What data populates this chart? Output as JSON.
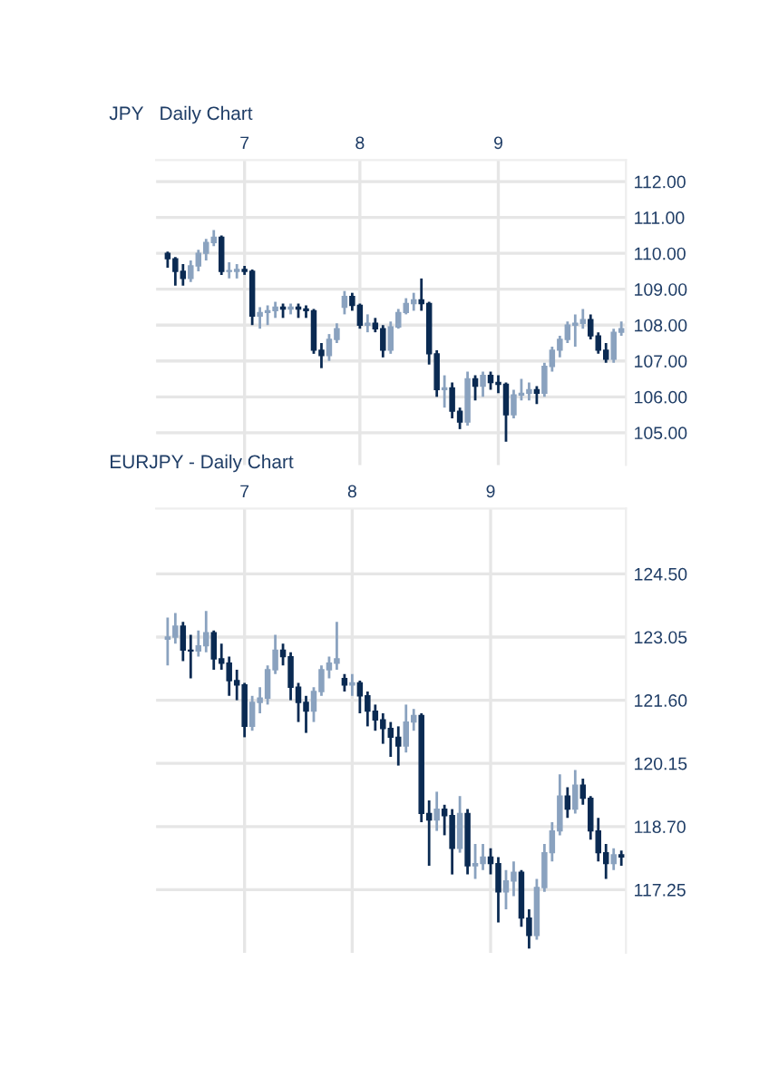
{
  "chart_data": [
    {
      "type": "candlestick",
      "title": "JPY   Daily Chart",
      "categories": [
        null,
        null,
        null,
        null,
        null,
        null,
        null,
        null,
        null,
        null,
        "7",
        null,
        null,
        null,
        null,
        null,
        null,
        null,
        null,
        null,
        null,
        null,
        null,
        null,
        null,
        "8",
        null,
        null,
        null,
        null,
        null,
        null,
        null,
        null,
        null,
        null,
        null,
        null,
        null,
        null,
        null,
        null,
        null,
        "9",
        null,
        null,
        null,
        null,
        null,
        null,
        null,
        null,
        null,
        null,
        null,
        null,
        null,
        null,
        null,
        null
      ],
      "ohlc": [
        [
          110.0,
          110.05,
          109.6,
          109.85
        ],
        [
          109.85,
          109.9,
          109.1,
          109.5
        ],
        [
          109.5,
          109.7,
          109.1,
          109.3
        ],
        [
          109.3,
          109.8,
          109.2,
          109.65
        ],
        [
          109.65,
          110.1,
          109.5,
          110.0
        ],
        [
          110.0,
          110.4,
          109.8,
          110.3
        ],
        [
          110.3,
          110.65,
          110.2,
          110.45
        ],
        [
          110.45,
          110.5,
          109.4,
          109.5
        ],
        [
          109.5,
          109.75,
          109.3,
          109.5
        ],
        [
          109.5,
          109.7,
          109.3,
          109.55
        ],
        [
          109.55,
          109.65,
          109.4,
          109.5
        ],
        [
          109.5,
          109.55,
          108.0,
          108.25
        ],
        [
          108.25,
          108.5,
          107.9,
          108.35
        ],
        [
          108.35,
          108.55,
          108.0,
          108.4
        ],
        [
          108.4,
          108.65,
          108.2,
          108.5
        ],
        [
          108.5,
          108.6,
          108.2,
          108.45
        ],
        [
          108.45,
          108.6,
          108.3,
          108.5
        ],
        [
          108.5,
          108.6,
          108.2,
          108.45
        ],
        [
          108.45,
          108.55,
          108.2,
          108.4
        ],
        [
          108.4,
          108.45,
          107.2,
          107.3
        ],
        [
          107.3,
          107.5,
          106.8,
          107.15
        ],
        [
          107.15,
          107.75,
          107.0,
          107.6
        ],
        [
          107.6,
          108.05,
          107.5,
          107.9
        ],
        [
          108.5,
          108.95,
          108.3,
          108.8
        ],
        [
          108.8,
          108.9,
          108.4,
          108.55
        ],
        [
          108.55,
          108.6,
          107.9,
          108.0
        ],
        [
          108.0,
          108.3,
          107.8,
          108.05
        ],
        [
          108.05,
          108.2,
          107.8,
          107.9
        ],
        [
          107.9,
          108.0,
          107.1,
          107.3
        ],
        [
          107.3,
          108.1,
          107.2,
          107.95
        ],
        [
          107.95,
          108.45,
          107.9,
          108.35
        ],
        [
          108.35,
          108.75,
          108.3,
          108.6
        ],
        [
          108.6,
          108.9,
          108.4,
          108.7
        ],
        [
          108.7,
          109.3,
          108.4,
          108.6
        ],
        [
          108.6,
          108.65,
          106.9,
          107.2
        ],
        [
          107.2,
          107.3,
          106.0,
          106.2
        ],
        [
          106.2,
          106.6,
          105.7,
          106.25
        ],
        [
          106.25,
          106.4,
          105.4,
          105.6
        ],
        [
          105.6,
          105.7,
          105.1,
          105.3
        ],
        [
          105.3,
          106.7,
          105.2,
          106.5
        ],
        [
          106.5,
          106.6,
          105.9,
          106.3
        ],
        [
          106.3,
          106.7,
          106.0,
          106.6
        ],
        [
          106.6,
          106.7,
          106.2,
          106.4
        ],
        [
          106.4,
          106.6,
          106.1,
          106.35
        ],
        [
          106.35,
          106.4,
          104.75,
          105.5
        ],
        [
          105.5,
          106.2,
          105.4,
          106.05
        ],
        [
          106.05,
          106.5,
          105.9,
          106.1
        ],
        [
          106.1,
          106.4,
          105.9,
          106.2
        ],
        [
          106.2,
          106.3,
          105.8,
          106.1
        ],
        [
          106.1,
          106.95,
          106.0,
          106.85
        ],
        [
          106.85,
          107.4,
          106.7,
          107.3
        ],
        [
          107.3,
          107.7,
          107.1,
          107.6
        ],
        [
          107.6,
          108.1,
          107.5,
          108.0
        ],
        [
          108.0,
          108.3,
          107.4,
          108.05
        ],
        [
          108.05,
          108.45,
          107.9,
          108.15
        ],
        [
          108.15,
          108.3,
          107.6,
          107.7
        ],
        [
          107.7,
          107.8,
          107.2,
          107.3
        ],
        [
          107.3,
          107.5,
          106.95,
          107.05
        ],
        [
          107.05,
          107.9,
          106.95,
          107.8
        ],
        [
          107.8,
          108.1,
          107.7,
          107.9
        ]
      ],
      "colors": [
        "#0a2a52",
        "#0a2a52",
        "#0a2a52",
        "#8aa2bf",
        "#8aa2bf",
        "#8aa2bf",
        "#8aa2bf",
        "#0a2a52",
        "#8aa2bf",
        "#8aa2bf",
        "#0a2a52",
        "#0a2a52",
        "#8aa2bf",
        "#8aa2bf",
        "#8aa2bf",
        "#0a2a52",
        "#8aa2bf",
        "#0a2a52",
        "#0a2a52",
        "#0a2a52",
        "#0a2a52",
        "#8aa2bf",
        "#8aa2bf",
        "#8aa2bf",
        "#0a2a52",
        "#0a2a52",
        "#8aa2bf",
        "#0a2a52",
        "#0a2a52",
        "#8aa2bf",
        "#8aa2bf",
        "#8aa2bf",
        "#8aa2bf",
        "#0a2a52",
        "#0a2a52",
        "#0a2a52",
        "#8aa2bf",
        "#0a2a52",
        "#0a2a52",
        "#8aa2bf",
        "#0a2a52",
        "#8aa2bf",
        "#0a2a52",
        "#0a2a52",
        "#0a2a52",
        "#8aa2bf",
        "#8aa2bf",
        "#8aa2bf",
        "#0a2a52",
        "#8aa2bf",
        "#8aa2bf",
        "#8aa2bf",
        "#8aa2bf",
        "#8aa2bf",
        "#8aa2bf",
        "#0a2a52",
        "#0a2a52",
        "#0a2a52",
        "#8aa2bf",
        "#8aa2bf"
      ],
      "ylim": [
        104.1,
        112.6
      ],
      "yticks": [
        {
          "value": 105,
          "label": "105.00"
        },
        {
          "value": 106,
          "label": "106.00"
        },
        {
          "value": 107,
          "label": "107.00"
        },
        {
          "value": 108,
          "label": "108.00"
        },
        {
          "value": 109,
          "label": "109.00"
        },
        {
          "value": 110,
          "label": "110.00"
        },
        {
          "value": 111,
          "label": "111.00"
        },
        {
          "value": 112,
          "label": "112.00"
        }
      ],
      "grid": true
    },
    {
      "type": "candlestick",
      "title": "EURJPY - Daily Chart",
      "categories": [
        null,
        null,
        null,
        null,
        null,
        null,
        null,
        null,
        null,
        null,
        "7",
        null,
        null,
        null,
        null,
        null,
        null,
        null,
        null,
        null,
        null,
        null,
        null,
        null,
        "8",
        null,
        null,
        null,
        null,
        null,
        null,
        null,
        null,
        null,
        null,
        null,
        null,
        null,
        null,
        null,
        null,
        null,
        "9",
        null,
        null,
        null,
        null,
        null,
        null,
        null,
        null,
        null,
        null,
        null,
        null,
        null,
        null,
        null,
        null,
        null
      ],
      "ohlc": [
        [
          123.0,
          123.5,
          122.4,
          123.05
        ],
        [
          123.05,
          123.6,
          122.9,
          123.3
        ],
        [
          123.3,
          123.4,
          122.5,
          122.75
        ],
        [
          122.75,
          123.1,
          122.1,
          122.73
        ],
        [
          122.73,
          123.2,
          122.6,
          122.85
        ],
        [
          122.85,
          123.65,
          122.7,
          123.15
        ],
        [
          123.15,
          123.2,
          122.3,
          122.55
        ],
        [
          122.55,
          122.9,
          122.3,
          122.45
        ],
        [
          122.45,
          122.6,
          121.7,
          122.05
        ],
        [
          122.05,
          122.3,
          121.6,
          121.95
        ],
        [
          121.95,
          122.0,
          120.75,
          121.0
        ],
        [
          121.0,
          121.7,
          120.9,
          121.55
        ],
        [
          121.55,
          121.9,
          121.3,
          121.65
        ],
        [
          121.65,
          122.4,
          121.5,
          122.3
        ],
        [
          122.3,
          123.1,
          122.2,
          122.75
        ],
        [
          122.75,
          122.9,
          122.4,
          122.6
        ],
        [
          122.6,
          122.7,
          121.6,
          121.9
        ],
        [
          121.9,
          122.0,
          121.1,
          121.55
        ],
        [
          121.55,
          121.7,
          120.85,
          121.35
        ],
        [
          121.35,
          121.9,
          121.1,
          121.8
        ],
        [
          121.8,
          122.4,
          121.7,
          122.3
        ],
        [
          122.3,
          122.6,
          122.1,
          122.45
        ],
        [
          122.45,
          123.4,
          122.3,
          122.55
        ],
        [
          122.1,
          122.2,
          121.8,
          121.95
        ],
        [
          121.95,
          122.2,
          121.7,
          122.0
        ],
        [
          122.0,
          122.05,
          121.3,
          121.7
        ],
        [
          121.7,
          121.8,
          121.0,
          121.35
        ],
        [
          121.35,
          121.5,
          120.9,
          121.15
        ],
        [
          121.15,
          121.3,
          120.6,
          120.95
        ],
        [
          120.95,
          121.1,
          120.3,
          120.75
        ],
        [
          120.75,
          121.0,
          120.1,
          120.55
        ],
        [
          120.55,
          121.5,
          120.4,
          121.1
        ],
        [
          121.1,
          121.4,
          120.9,
          121.25
        ],
        [
          121.25,
          121.3,
          118.8,
          119.0
        ],
        [
          119.0,
          119.3,
          117.8,
          118.85
        ],
        [
          118.85,
          119.5,
          118.6,
          119.1
        ],
        [
          119.1,
          119.2,
          118.5,
          118.95
        ],
        [
          118.95,
          119.1,
          117.6,
          118.2
        ],
        [
          118.2,
          119.4,
          118.1,
          119.0
        ],
        [
          119.0,
          119.1,
          117.6,
          117.8
        ],
        [
          117.8,
          118.3,
          117.5,
          117.85
        ],
        [
          117.85,
          118.3,
          117.7,
          118.0
        ],
        [
          118.0,
          118.2,
          117.6,
          117.85
        ],
        [
          117.85,
          118.0,
          116.5,
          117.2
        ],
        [
          117.2,
          117.7,
          116.8,
          117.45
        ],
        [
          117.45,
          117.9,
          117.1,
          117.65
        ],
        [
          117.65,
          117.7,
          116.4,
          116.6
        ],
        [
          116.6,
          116.8,
          115.9,
          116.2
        ],
        [
          116.2,
          117.5,
          116.1,
          117.3
        ],
        [
          117.3,
          118.3,
          117.2,
          118.1
        ],
        [
          118.1,
          118.8,
          117.9,
          118.6
        ],
        [
          118.6,
          119.9,
          118.5,
          119.4
        ],
        [
          119.4,
          119.6,
          118.9,
          119.1
        ],
        [
          119.1,
          120.0,
          119.0,
          119.65
        ],
        [
          119.65,
          119.8,
          119.2,
          119.35
        ],
        [
          119.35,
          119.4,
          118.4,
          118.6
        ],
        [
          118.6,
          118.9,
          117.9,
          118.1
        ],
        [
          118.1,
          118.3,
          117.5,
          117.85
        ],
        [
          117.85,
          118.2,
          117.7,
          118.05
        ],
        [
          118.05,
          118.15,
          117.8,
          118.0
        ]
      ],
      "colors": [
        "#8aa2bf",
        "#8aa2bf",
        "#0a2a52",
        "#0a2a52",
        "#8aa2bf",
        "#8aa2bf",
        "#0a2a52",
        "#0a2a52",
        "#0a2a52",
        "#0a2a52",
        "#0a2a52",
        "#8aa2bf",
        "#8aa2bf",
        "#8aa2bf",
        "#8aa2bf",
        "#0a2a52",
        "#0a2a52",
        "#0a2a52",
        "#0a2a52",
        "#8aa2bf",
        "#8aa2bf",
        "#8aa2bf",
        "#8aa2bf",
        "#0a2a52",
        "#8aa2bf",
        "#0a2a52",
        "#0a2a52",
        "#0a2a52",
        "#0a2a52",
        "#0a2a52",
        "#0a2a52",
        "#8aa2bf",
        "#8aa2bf",
        "#0a2a52",
        "#0a2a52",
        "#8aa2bf",
        "#0a2a52",
        "#0a2a52",
        "#8aa2bf",
        "#0a2a52",
        "#8aa2bf",
        "#8aa2bf",
        "#0a2a52",
        "#0a2a52",
        "#8aa2bf",
        "#8aa2bf",
        "#0a2a52",
        "#0a2a52",
        "#8aa2bf",
        "#8aa2bf",
        "#8aa2bf",
        "#8aa2bf",
        "#0a2a52",
        "#8aa2bf",
        "#0a2a52",
        "#0a2a52",
        "#0a2a52",
        "#0a2a52",
        "#8aa2bf",
        "#0a2a52"
      ],
      "ylim": [
        115.8,
        126.0
      ],
      "yticks": [
        {
          "value": 117.25,
          "label": "117.25"
        },
        {
          "value": 118.7,
          "label": "118.70"
        },
        {
          "value": 120.15,
          "label": "120.15"
        },
        {
          "value": 121.6,
          "label": "121.60"
        },
        {
          "value": 123.05,
          "label": "123.05"
        },
        {
          "value": 124.5,
          "label": "124.50"
        }
      ],
      "grid": true
    }
  ]
}
